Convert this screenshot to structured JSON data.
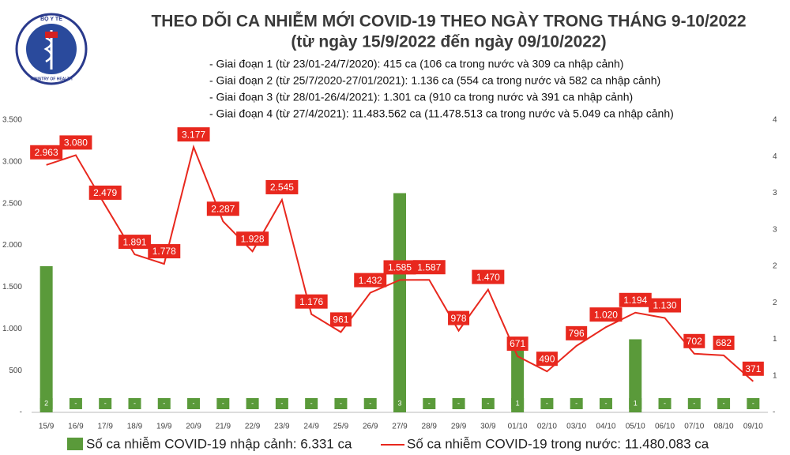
{
  "logo": {
    "top": "BỘ Y TẾ",
    "bottom": "MINISTRY OF HEALTH"
  },
  "chart_data": {
    "type": "combo",
    "title": "THEO DÕI CA NHIỄM MỚI COVID-19 THEO NGÀY TRONG THÁNG 9-10/2022",
    "subtitle": "(từ ngày 15/9/2022 đến ngày 09/10/2022)",
    "notes": [
      "- Giai đoạn 1 (từ 23/01-24/7/2020): 415 ca (106 ca trong nước và 309 ca nhập cảnh)",
      "- Giai đoạn 2 (từ 25/7/2020-27/01/2021): 1.136 ca (554 ca trong nước và 582 ca nhập cảnh)",
      "- Giai đoạn 3 (từ 28/01-26/4/2021): 1.301 ca (910 ca trong nước và 391 ca nhập cảnh)",
      "- Giai đoạn 4 (từ 27/4/2021): 11.483.562 ca (11.478.513 ca trong nước và 5.049 ca nhập cảnh)"
    ],
    "categories": [
      "15/9",
      "16/9",
      "17/9",
      "18/9",
      "19/9",
      "20/9",
      "21/9",
      "22/9",
      "23/9",
      "24/9",
      "25/9",
      "26/9",
      "27/9",
      "28/9",
      "29/9",
      "30/9",
      "01/10",
      "02/10",
      "03/10",
      "04/10",
      "05/10",
      "06/10",
      "07/10",
      "08/10",
      "09/10"
    ],
    "ylim": [
      0,
      3500
    ],
    "yticks": [
      {
        "value": 0,
        "label": "-"
      },
      500,
      {
        "value": 1000,
        "label": "1.000"
      },
      {
        "value": 1500,
        "label": "1.500"
      },
      {
        "value": 2000,
        "label": "2.000"
      },
      {
        "value": 2500,
        "label": "2.500"
      },
      {
        "value": 3000,
        "label": "3.000"
      },
      {
        "value": 3500,
        "label": "3.500"
      }
    ],
    "y2lim": [
      0,
      4
    ],
    "y2ticks": [
      {
        "value": 0,
        "label": "-"
      },
      {
        "value": 0.5,
        "label": "1"
      },
      1,
      {
        "value": 1.5,
        "label": "2"
      },
      2,
      {
        "value": 2.5,
        "label": "3"
      },
      3,
      {
        "value": 3.5,
        "label": "4"
      },
      4
    ],
    "series": [
      {
        "name": "Số ca nhiễm COVID-19 nhập cảnh: 6.331 ca",
        "type": "bar",
        "axis": "y2",
        "color": "#5a9a3a",
        "values": [
          2,
          0,
          0,
          0,
          0,
          0,
          0,
          0,
          0,
          0,
          0,
          0,
          3,
          0,
          0,
          0,
          1,
          0,
          0,
          0,
          1,
          0,
          0,
          0,
          0
        ],
        "value_labels": [
          "2",
          "-",
          "-",
          "-",
          "-",
          "-",
          "-",
          "-",
          "-",
          "-",
          "-",
          "-",
          "3",
          "-",
          "-",
          "-",
          "1",
          "-",
          "-",
          "-",
          "1",
          "-",
          "-",
          "-",
          "-"
        ]
      },
      {
        "name": "Số ca nhiễm COVID-19 trong nước: 11.480.083 ca",
        "type": "line",
        "color": "#e8281e",
        "values": [
          2963,
          3080,
          2479,
          1891,
          1778,
          3177,
          2287,
          1928,
          2545,
          1176,
          961,
          1432,
          1585,
          1587,
          978,
          1470,
          671,
          490,
          796,
          1020,
          1194,
          1130,
          702,
          682,
          371
        ],
        "value_labels": [
          "2.963",
          "3.080",
          "2.479",
          "1.891",
          "1.778",
          "3.177",
          "2.287",
          "1.928",
          "2.545",
          "1.176",
          "961",
          "1.432",
          "1.585",
          "1.587",
          "978",
          "1.470",
          "671",
          "490",
          "796",
          "1.020",
          "1.194",
          "1.130",
          "702",
          "682",
          "371"
        ]
      }
    ]
  }
}
